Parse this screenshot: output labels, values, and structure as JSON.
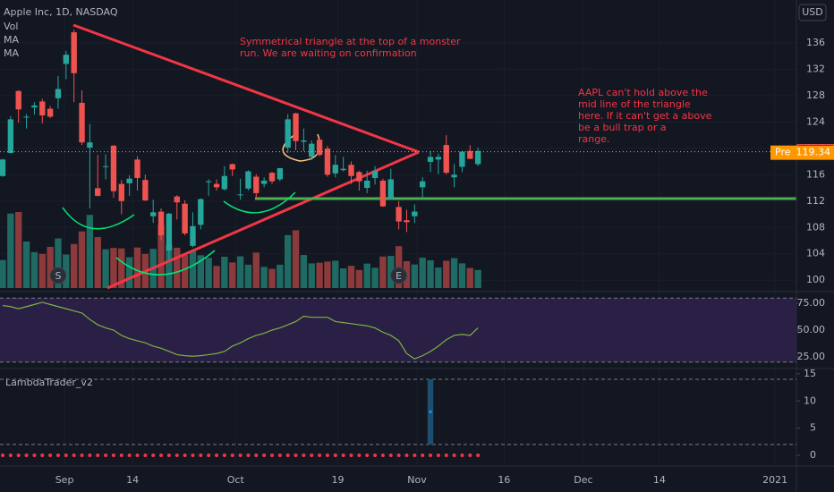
{
  "header": {
    "symbol": "Apple Inc, 1D, NASDAQ",
    "indicators": [
      "Vol",
      "MA",
      "MA"
    ],
    "currency": "USD"
  },
  "chart_data": [
    {
      "type": "candlestick",
      "x": [
        "Aug 20",
        "Aug 21",
        "Aug 24",
        "Aug 25",
        "Aug 26",
        "Aug 27",
        "Aug 28",
        "Aug 31",
        "Sep 1",
        "Sep 2",
        "Sep 3",
        "Sep 4",
        "Sep 8",
        "Sep 9",
        "Sep 10",
        "Sep 11",
        "Sep 14",
        "Sep 15",
        "Sep 16",
        "Sep 17",
        "Sep 18",
        "Sep 21",
        "Sep 22",
        "Sep 23",
        "Sep 24",
        "Sep 25",
        "Sep 28",
        "Sep 29",
        "Sep 30",
        "Oct 1",
        "Oct 2",
        "Oct 5",
        "Oct 6",
        "Oct 7",
        "Oct 8",
        "Oct 9",
        "Oct 12",
        "Oct 13",
        "Oct 14",
        "Oct 15",
        "Oct 16",
        "Oct 19",
        "Oct 20",
        "Oct 21",
        "Oct 22",
        "Oct 23",
        "Oct 26",
        "Oct 27",
        "Oct 28",
        "Oct 29",
        "Oct 30",
        "Nov 2",
        "Nov 3",
        "Nov 4",
        "Nov 5",
        "Nov 6",
        "Nov 9",
        "Nov 10",
        "Nov 11",
        "Nov 12",
        "Nov 13"
      ],
      "open": [
        115.8,
        119.3,
        128.7,
        124.7,
        126.2,
        127.1,
        126.0,
        127.6,
        132.8,
        137.6,
        126.9,
        120.1,
        113.95,
        117.3,
        120.4,
        114.6,
        114.7,
        118.3,
        115.2,
        109.7,
        110.4,
        104.5,
        112.7,
        111.6,
        105.2,
        108.4,
        115.0,
        114.6,
        113.8,
        117.6,
        112.9,
        113.9,
        115.7,
        114.6,
        116.3,
        115.3,
        120.1,
        125.3,
        121.0,
        118.7,
        121.3,
        119.96,
        116.2,
        116.7,
        117.5,
        116.4,
        114.0,
        115.5,
        115.1,
        112.4,
        111.1,
        109.1,
        109.7,
        114.1,
        117.95,
        118.3,
        120.5,
        115.6,
        117.2,
        119.6,
        117.6
      ],
      "high": [
        118.4,
        124.9,
        128.8,
        125.2,
        126.99,
        127.5,
        126.4,
        131.0,
        134.8,
        137.98,
        128.8,
        123.7,
        118.99,
        119.1,
        120.5,
        115.2,
        115.9,
        118.8,
        116.0,
        112.2,
        110.9,
        110.2,
        112.9,
        112.1,
        110.3,
        112.4,
        115.3,
        115.3,
        117.3,
        117.7,
        115.4,
        116.7,
        116.1,
        115.6,
        116.4,
        117.0,
        125.2,
        125.4,
        123.0,
        121.2,
        121.5,
        120.4,
        118.98,
        118.7,
        118.0,
        116.6,
        116.6,
        117.3,
        115.4,
        116.9,
        111.99,
        110.7,
        111.5,
        115.6,
        119.6,
        119.2,
        121.99,
        117.6,
        119.6,
        120.5,
        120.1
      ],
      "low": [
        115.7,
        119.2,
        123.9,
        123.0,
        125.1,
        123.8,
        124.6,
        126.0,
        130.5,
        127.0,
        120.5,
        110.9,
        112.7,
        115.3,
        112.5,
        110.0,
        112.8,
        113.6,
        112.0,
        108.7,
        106.1,
        103.1,
        109.2,
        106.8,
        105.0,
        107.7,
        112.8,
        113.6,
        113.6,
        115.8,
        112.2,
        113.6,
        112.3,
        114.1,
        114.6,
        115.0,
        119.3,
        119.7,
        119.6,
        118.2,
        118.8,
        115.7,
        115.6,
        116.5,
        114.6,
        113.6,
        113.2,
        114.5,
        111.1,
        112.2,
        107.7,
        107.3,
        108.7,
        112.4,
        116.4,
        116.1,
        116.05,
        114.1,
        116.4,
        118.6,
        117.3
      ],
      "close": [
        118.3,
        124.4,
        125.9,
        124.8,
        126.5,
        125.0,
        124.8,
        129.0,
        134.2,
        131.4,
        120.9,
        120.9,
        112.8,
        117.3,
        113.5,
        112.0,
        115.4,
        115.5,
        112.1,
        110.3,
        106.8,
        110.1,
        111.8,
        107.1,
        108.2,
        112.3,
        115.0,
        114.1,
        115.8,
        116.8,
        113.0,
        116.5,
        113.2,
        115.1,
        115.0,
        117.0,
        124.4,
        121.1,
        121.2,
        120.7,
        119.0,
        116.0,
        117.5,
        116.9,
        115.8,
        115.0,
        115.1,
        116.6,
        111.2,
        115.3,
        108.9,
        108.8,
        110.4,
        115.0,
        118.7,
        118.7,
        116.3,
        116.0,
        119.5,
        118.4,
        119.6
      ],
      "up_color": "#26a69a",
      "down_color": "#ef5350",
      "ylim": [
        98.4,
        142.5
      ],
      "yticks": [
        100,
        104,
        108,
        112,
        116,
        120,
        124,
        128,
        132,
        136
      ],
      "xlim": [
        -0.34,
        100.2
      ],
      "xticks": [
        {
          "value": 7.8,
          "label": "Sep"
        },
        {
          "value": 16.4,
          "label": "14"
        },
        {
          "value": 29.4,
          "label": "Oct"
        },
        {
          "value": 42.3,
          "label": "19"
        },
        {
          "value": 52.3,
          "label": "Nov"
        },
        {
          "value": 63.3,
          "label": "16"
        },
        {
          "value": 73.3,
          "label": "Dec"
        },
        {
          "value": 82.9,
          "label": "14"
        },
        {
          "value": 97.5,
          "label": "2021"
        }
      ],
      "last_price": 119.49,
      "last_color": "#ef5350",
      "pre_market": {
        "label": "Pre",
        "value": 119.34,
        "color": "#ff9800"
      },
      "events": [
        {
          "date": "Aug 31",
          "label": "S"
        },
        {
          "date": "Oct 30",
          "label": "E"
        }
      ],
      "annotations": [
        [
          "Symmetrical triangle at the top of a monster",
          "run. We are waiting on confirmation"
        ],
        [
          "AAPL can't hold above the",
          "mid line of the triangle",
          "here. If it can't get a above",
          "be a bull trap or a",
          "range."
        ]
      ]
    },
    {
      "type": "volume",
      "title": "Vol",
      "values": [
        127,
        338,
        345,
        211,
        163,
        155,
        187,
        225,
        152,
        200,
        257,
        332,
        231,
        176,
        182,
        180,
        140,
        184,
        155,
        178,
        287,
        195,
        183,
        150,
        167,
        149,
        137,
        100,
        142,
        116,
        144,
        106,
        161,
        96,
        87,
        106,
        240,
        262,
        150,
        112,
        115,
        120,
        124,
        89,
        101,
        82,
        111,
        92,
        143,
        146,
        190,
        122,
        107,
        138,
        126,
        93,
        124,
        136,
        112,
        91,
        82
      ]
    },
    {
      "type": "line",
      "title": "MFI",
      "color": "#7cb342",
      "values": [
        73,
        72,
        70,
        72,
        74,
        76,
        74,
        72,
        70,
        68,
        66,
        60,
        55,
        52,
        50,
        45,
        42,
        40,
        38,
        35,
        33,
        30,
        27,
        26,
        25.5,
        26,
        27,
        28,
        30,
        35,
        38,
        42,
        45,
        47,
        50,
        52,
        55,
        58,
        63,
        62,
        62,
        62,
        58,
        57,
        56,
        55,
        54,
        52,
        48,
        45,
        40,
        28,
        23,
        26,
        30,
        35,
        41,
        45,
        46,
        45,
        52
      ],
      "ylim": [
        14.8,
        85.2
      ],
      "yticks": [
        {
          "value": 25,
          "label": "25.00"
        },
        {
          "value": 50,
          "label": "50.00"
        },
        {
          "value": 75,
          "label": "75.00"
        }
      ],
      "band": [
        20,
        80
      ]
    },
    {
      "type": "signal",
      "title": "LambdaTrader_v2",
      "color": "#f23645",
      "values": [
        0,
        0,
        0,
        0,
        0,
        0,
        0,
        0,
        0,
        0,
        0,
        0,
        0,
        0,
        0,
        0,
        0,
        0,
        0,
        0,
        0,
        0,
        0,
        0,
        0,
        0,
        0,
        0,
        0,
        0,
        0,
        0,
        0,
        0,
        0,
        0,
        0,
        0,
        0,
        0,
        0,
        0,
        0,
        0,
        0,
        0,
        0,
        0,
        0,
        0,
        0,
        0,
        0,
        0,
        0,
        0,
        0,
        0,
        0,
        0,
        0
      ],
      "signal": {
        "date": "Nov 5",
        "low": 2,
        "high": 14,
        "value": 8,
        "color": "#1c4f6e"
      },
      "ylim": [
        -1.8,
        15.8
      ],
      "yticks": [
        0,
        5,
        10,
        15
      ],
      "levels": [
        2,
        14
      ]
    }
  ]
}
